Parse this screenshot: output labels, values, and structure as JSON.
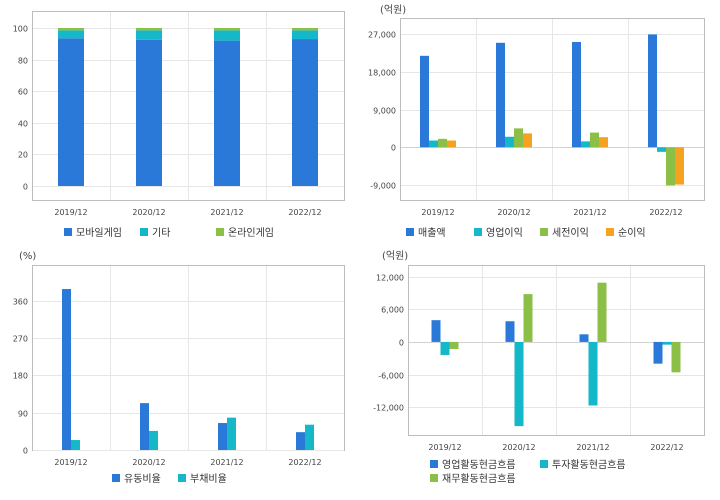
{
  "colors": {
    "blue": "#2a78d8",
    "cyan": "#14b8c8",
    "green": "#8bbf45",
    "orange": "#f4a21f",
    "grid": "#e6e6e6",
    "frame": "#bdbdbd"
  },
  "chart_data": [
    {
      "type": "bar",
      "stacked": true,
      "title": "",
      "unit": "",
      "categories": [
        "2019/12",
        "2020/12",
        "2021/12",
        "2022/12"
      ],
      "y_ticks": [
        "0",
        "20",
        "40",
        "60",
        "80",
        "100"
      ],
      "ylim": [
        0,
        100
      ],
      "grid": true,
      "legend_position": "bottom",
      "series": [
        {
          "name": "모바일게임",
          "color": "#2a78d8",
          "values": [
            93.5,
            92.5,
            92,
            93
          ]
        },
        {
          "name": "기타",
          "color": "#14b8c8",
          "values": [
            5,
            6,
            6.5,
            5.5
          ]
        },
        {
          "name": "온라인게임",
          "color": "#8bbf45",
          "values": [
            1.5,
            1.5,
            1.5,
            1.5
          ]
        }
      ]
    },
    {
      "type": "bar",
      "stacked": false,
      "title": "",
      "unit": "(억원)",
      "categories": [
        "2019/12",
        "2020/12",
        "2021/12",
        "2022/12"
      ],
      "y_ticks": [
        "27,000",
        "18,000",
        "9,000",
        "0",
        "-9,000"
      ],
      "ylim": [
        -9000,
        27000
      ],
      "grid": true,
      "legend_position": "bottom",
      "series": [
        {
          "name": "매출액",
          "color": "#2a78d8",
          "values": [
            21800,
            24900,
            25100,
            26900
          ]
        },
        {
          "name": "영업이익",
          "color": "#14b8c8",
          "values": [
            1600,
            2500,
            1400,
            -1100
          ]
        },
        {
          "name": "세전이익",
          "color": "#8bbf45",
          "values": [
            2000,
            4500,
            3500,
            -9100
          ]
        },
        {
          "name": "순이익",
          "color": "#f4a21f",
          "values": [
            1600,
            3300,
            2400,
            -8900
          ]
        }
      ]
    },
    {
      "type": "bar",
      "stacked": false,
      "title": "",
      "unit": "(%)",
      "categories": [
        "2019/12",
        "2020/12",
        "2021/12",
        "2022/12"
      ],
      "y_ticks": [
        "0",
        "90",
        "180",
        "270",
        "360"
      ],
      "ylim": [
        0,
        405
      ],
      "grid": true,
      "legend_position": "bottom",
      "series": [
        {
          "name": "유동비율",
          "color": "#2a78d8",
          "values": [
            388,
            113,
            65,
            43
          ]
        },
        {
          "name": "부채비율",
          "color": "#14b8c8",
          "values": [
            24,
            46,
            78,
            61
          ]
        }
      ]
    },
    {
      "type": "bar",
      "stacked": false,
      "title": "",
      "unit": "(억원)",
      "categories": [
        "2019/12",
        "2020/12",
        "2021/12",
        "2022/12"
      ],
      "y_ticks": [
        "12,000",
        "6,000",
        "0",
        "-6,000",
        "-12,000"
      ],
      "ylim": [
        -17500,
        12500
      ],
      "grid": true,
      "legend_position": "bottom",
      "series": [
        {
          "name": "영업활동현금흐름",
          "color": "#2a78d8",
          "values": [
            4000,
            3800,
            1400,
            -4000
          ]
        },
        {
          "name": "투자활동현금흐름",
          "color": "#14b8c8",
          "values": [
            -2400,
            -15500,
            -11700,
            -500
          ]
        },
        {
          "name": "재무활동현금흐름",
          "color": "#8bbf45",
          "values": [
            -1300,
            8800,
            10900,
            -5600
          ]
        }
      ]
    }
  ]
}
